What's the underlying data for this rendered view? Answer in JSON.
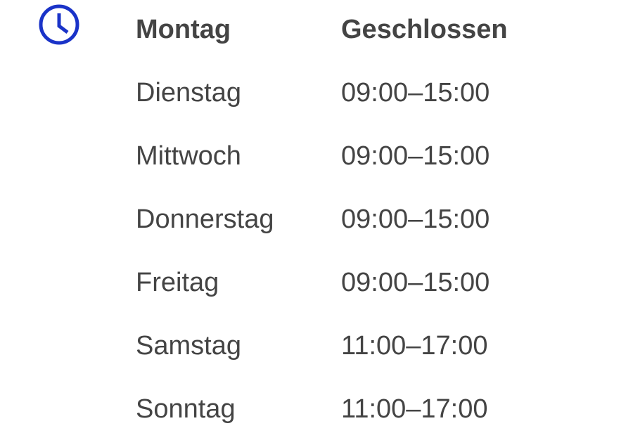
{
  "icon": {
    "name": "clock-icon",
    "color": "#1a33c8"
  },
  "text_color": "#444444",
  "hours": [
    {
      "day": "Montag",
      "time": "Geschlossen",
      "highlight": true
    },
    {
      "day": "Dienstag",
      "time": "09:00–15:00"
    },
    {
      "day": "Mittwoch",
      "time": "09:00–15:00"
    },
    {
      "day": "Donnerstag",
      "time": "09:00–15:00"
    },
    {
      "day": "Freitag",
      "time": "09:00–15:00"
    },
    {
      "day": "Samstag",
      "time": "11:00–17:00"
    },
    {
      "day": "Sonntag",
      "time": "11:00–17:00"
    }
  ]
}
